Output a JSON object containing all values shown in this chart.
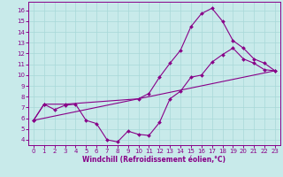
{
  "bg_color": "#c8eaea",
  "line_color": "#880088",
  "xlabel": "Windchill (Refroidissement éolien,°C)",
  "xlim_min": -0.5,
  "xlim_max": 23.5,
  "ylim_min": 3.5,
  "ylim_max": 16.8,
  "xticks": [
    0,
    1,
    2,
    3,
    4,
    5,
    6,
    7,
    8,
    9,
    10,
    11,
    12,
    13,
    14,
    15,
    16,
    17,
    18,
    19,
    20,
    21,
    22,
    23
  ],
  "yticks": [
    4,
    5,
    6,
    7,
    8,
    9,
    10,
    11,
    12,
    13,
    14,
    15,
    16
  ],
  "curve1_x": [
    0,
    1,
    2,
    3,
    4,
    5,
    6,
    7,
    8,
    9,
    10,
    11,
    12,
    13,
    14,
    15,
    16,
    17,
    18,
    19,
    20,
    21,
    22,
    23
  ],
  "curve1_y": [
    5.8,
    7.3,
    6.8,
    7.2,
    7.3,
    5.8,
    5.5,
    4.0,
    3.8,
    4.8,
    4.5,
    4.4,
    5.6,
    7.8,
    8.5,
    9.8,
    10.0,
    11.2,
    11.9,
    12.5,
    11.5,
    11.1,
    10.5,
    10.4
  ],
  "curve2_x": [
    0,
    1,
    3,
    10,
    11,
    12,
    13,
    14,
    15,
    16,
    17,
    18,
    19,
    20,
    21,
    22,
    23
  ],
  "curve2_y": [
    5.8,
    7.3,
    7.3,
    7.8,
    8.3,
    9.8,
    11.1,
    12.3,
    14.5,
    15.7,
    16.2,
    15.0,
    13.2,
    12.5,
    11.5,
    11.1,
    10.4
  ],
  "curve3_x": [
    0,
    23
  ],
  "curve3_y": [
    5.8,
    10.4
  ],
  "grid_color": "#a8d8d8",
  "tick_fontsize": 5,
  "xlabel_fontsize": 5.5
}
